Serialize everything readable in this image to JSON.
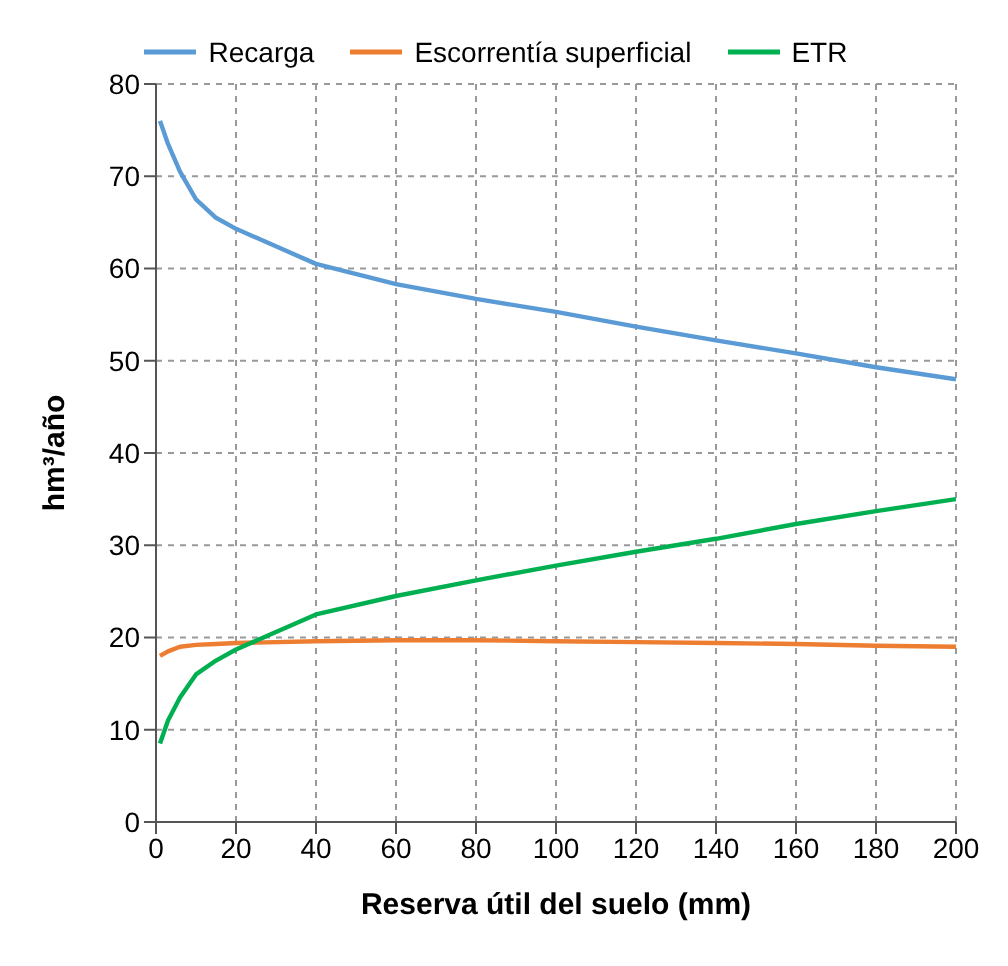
{
  "chart_data": {
    "type": "line",
    "xlabel": "Reserva útil del suelo (mm)",
    "ylabel": "hm³/año",
    "x": [
      1,
      3,
      6,
      10,
      15,
      20,
      40,
      60,
      80,
      100,
      120,
      140,
      160,
      180,
      200
    ],
    "series": [
      {
        "name": "Recarga",
        "color": "#5b9bd5",
        "values": [
          76,
          73.5,
          70.5,
          67.5,
          65.5,
          64.3,
          60.5,
          58.3,
          56.7,
          55.3,
          53.7,
          52.2,
          50.8,
          49.3,
          48
        ]
      },
      {
        "name": "Escorrentía superficial",
        "color": "#ed7d31",
        "values": [
          18,
          18.5,
          19,
          19.2,
          19.3,
          19.4,
          19.6,
          19.7,
          19.7,
          19.6,
          19.5,
          19.4,
          19.3,
          19.1,
          19
        ]
      },
      {
        "name": "ETR",
        "color": "#00b050",
        "values": [
          8.5,
          11,
          13.5,
          16,
          17.5,
          18.7,
          22.5,
          24.5,
          26.2,
          27.8,
          29.3,
          30.7,
          32.3,
          33.7,
          35
        ]
      }
    ],
    "xlim": [
      0,
      200
    ],
    "xticks": [
      0,
      20,
      40,
      60,
      80,
      100,
      120,
      140,
      160,
      180,
      200
    ],
    "ylim": [
      0,
      80
    ],
    "yticks": [
      0,
      10,
      20,
      30,
      40,
      50,
      60,
      70,
      80
    ],
    "grid": true,
    "legend": "top",
    "marker": "none",
    "line_style": "solid"
  }
}
